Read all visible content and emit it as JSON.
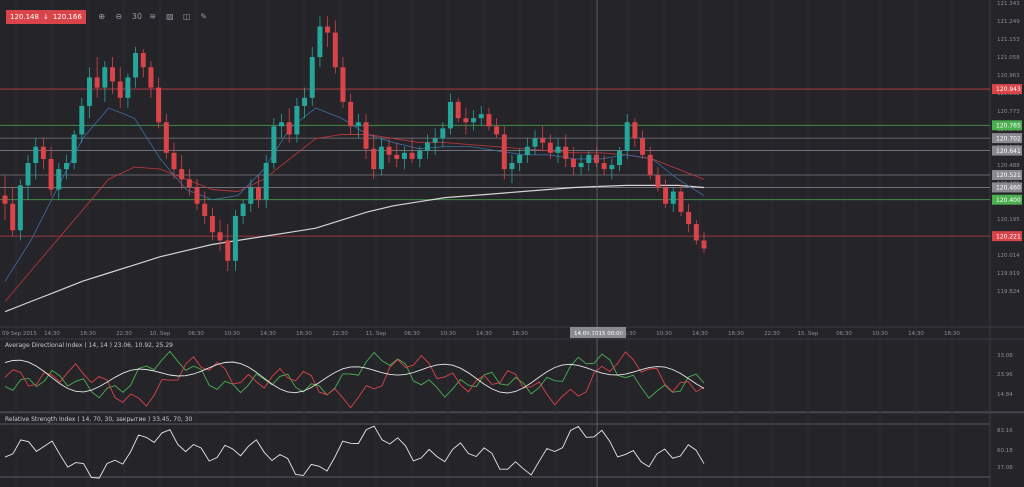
{
  "toolbar": {
    "bid": "120.148",
    "ask": "120.166",
    "tools": [
      {
        "icon": "zoom-in-icon",
        "glyph": "⊕"
      },
      {
        "icon": "zoom-out-icon",
        "glyph": "⊖"
      },
      {
        "icon": "timeframe-icon",
        "glyph": "30"
      },
      {
        "icon": "indicators-icon",
        "glyph": "≋"
      },
      {
        "icon": "screenshot-icon",
        "glyph": "▨"
      },
      {
        "icon": "objects-icon",
        "glyph": "◫"
      },
      {
        "icon": "draw-icon",
        "glyph": "✎"
      }
    ]
  },
  "colors": {
    "background": "#242429",
    "bull": "#26a69a",
    "bear": "#d9444a",
    "resistance": "#d9444a",
    "support": "#4caf50",
    "neutral_line": "#8a8a92",
    "ma_slow": "#e8e8e8",
    "ma_red": "#c0393e",
    "ma_blue": "#3f6fa6"
  },
  "price_axis": {
    "ticks": [
      "121.343",
      "121.249",
      "121.153",
      "121.058",
      "120.963",
      "120.868",
      "120.773",
      "120.678",
      "120.583",
      "120.488",
      "120.385",
      "120.290",
      "120.195",
      "120.109",
      "120.014",
      "119.919",
      "119.824"
    ]
  },
  "price_levels": [
    {
      "label": "120.943",
      "kind": "resistance"
    },
    {
      "label": "120.765",
      "kind": "support"
    },
    {
      "label": "120.702",
      "kind": "neutral"
    },
    {
      "label": "120.641",
      "kind": "neutral"
    },
    {
      "label": "120.521",
      "kind": "neutral"
    },
    {
      "label": "120.460",
      "kind": "neutral"
    },
    {
      "label": "120.400",
      "kind": "support"
    },
    {
      "label": "120.221",
      "kind": "resistance"
    }
  ],
  "time_axis": {
    "labels": [
      "09 Sep 2015",
      "14:30",
      "18:30",
      "22:30",
      "10. Sep",
      "06:30",
      "10:30",
      "14:30",
      "18:30",
      "22:30",
      "11. Sep",
      "06:30",
      "10:30",
      "14:30",
      "18:30",
      "14.09.2015 00:00",
      "Sep",
      "06:30",
      "10:30",
      "14:30",
      "18:30",
      "22:30",
      "15. Sep",
      "06:30",
      "10:30",
      "14:30",
      "18:30"
    ],
    "crosshair_label": "14.09.2015 00:00"
  },
  "adx_panel": {
    "title": "Average Directional Index ( 14, 14 ) 23.06, 10.92, 25.29",
    "ticks": [
      "33.08",
      "23.96",
      "14.84"
    ]
  },
  "rsi_panel": {
    "title": "Relative Strength Index ( 14, 70, 30, закрытие ) 33.45, 70, 30",
    "ticks": [
      "83.16",
      "60.18",
      "37.08"
    ]
  },
  "chart_data": {
    "type": "candlestick",
    "symbol_quote": {
      "bid": 120.148,
      "ask": 120.166
    },
    "ylim": [
      119.78,
      121.38
    ],
    "candles_ohlc": [
      [
        120.42,
        120.52,
        120.3,
        120.38
      ],
      [
        120.38,
        120.46,
        120.22,
        120.25
      ],
      [
        120.25,
        120.5,
        120.2,
        120.47
      ],
      [
        120.47,
        120.62,
        120.4,
        120.58
      ],
      [
        120.58,
        120.7,
        120.5,
        120.66
      ],
      [
        120.66,
        120.7,
        120.55,
        120.6
      ],
      [
        120.6,
        120.66,
        120.42,
        120.45
      ],
      [
        120.45,
        120.58,
        120.4,
        120.55
      ],
      [
        120.55,
        120.62,
        120.5,
        120.58
      ],
      [
        120.58,
        120.74,
        120.55,
        120.72
      ],
      [
        120.72,
        120.9,
        120.68,
        120.86
      ],
      [
        120.86,
        121.05,
        120.8,
        121.0
      ],
      [
        121.0,
        121.1,
        120.9,
        120.95
      ],
      [
        120.95,
        121.08,
        120.88,
        121.05
      ],
      [
        121.05,
        121.1,
        120.92,
        120.98
      ],
      [
        120.98,
        121.05,
        120.85,
        120.9
      ],
      [
        120.9,
        121.02,
        120.85,
        121.0
      ],
      [
        121.0,
        121.15,
        120.95,
        121.12
      ],
      [
        121.12,
        121.14,
        121.0,
        121.05
      ],
      [
        121.05,
        121.08,
        120.9,
        120.95
      ],
      [
        120.95,
        121.0,
        120.75,
        120.78
      ],
      [
        120.78,
        120.82,
        120.6,
        120.63
      ],
      [
        120.63,
        120.68,
        120.5,
        120.55
      ],
      [
        120.55,
        120.62,
        120.45,
        120.5
      ],
      [
        120.5,
        120.55,
        120.42,
        120.46
      ],
      [
        120.46,
        120.5,
        120.35,
        120.38
      ],
      [
        120.38,
        120.44,
        120.28,
        120.32
      ],
      [
        120.32,
        120.36,
        120.2,
        120.24
      ],
      [
        120.24,
        120.3,
        120.15,
        120.2
      ],
      [
        120.2,
        120.28,
        120.05,
        120.1
      ],
      [
        120.1,
        120.35,
        120.05,
        120.32
      ],
      [
        120.32,
        120.4,
        120.28,
        120.38
      ],
      [
        120.38,
        120.5,
        120.34,
        120.46
      ],
      [
        120.46,
        120.52,
        120.36,
        120.4
      ],
      [
        120.4,
        120.62,
        120.36,
        120.58
      ],
      [
        120.58,
        120.8,
        120.55,
        120.76
      ],
      [
        120.76,
        120.82,
        120.7,
        120.78
      ],
      [
        120.78,
        120.85,
        120.68,
        120.72
      ],
      [
        120.72,
        120.9,
        120.68,
        120.86
      ],
      [
        120.86,
        120.95,
        120.8,
        120.9
      ],
      [
        120.9,
        121.15,
        120.86,
        121.1
      ],
      [
        121.1,
        121.3,
        121.05,
        121.25
      ],
      [
        121.25,
        121.3,
        121.15,
        121.22
      ],
      [
        121.22,
        121.28,
        121.02,
        121.05
      ],
      [
        121.05,
        121.1,
        120.85,
        120.88
      ],
      [
        120.88,
        120.92,
        120.72,
        120.76
      ],
      [
        120.76,
        120.82,
        120.7,
        120.78
      ],
      [
        120.78,
        120.82,
        120.6,
        120.65
      ],
      [
        120.65,
        120.72,
        120.5,
        120.55
      ],
      [
        120.55,
        120.7,
        120.52,
        120.66
      ],
      [
        120.66,
        120.7,
        120.58,
        120.62
      ],
      [
        120.62,
        120.68,
        120.56,
        120.6
      ],
      [
        120.6,
        120.66,
        120.55,
        120.63
      ],
      [
        120.63,
        120.7,
        120.58,
        120.6
      ],
      [
        120.6,
        120.66,
        120.56,
        120.64
      ],
      [
        120.64,
        120.72,
        120.6,
        120.68
      ],
      [
        120.68,
        120.75,
        120.62,
        120.7
      ],
      [
        120.7,
        120.78,
        120.66,
        120.75
      ],
      [
        120.75,
        120.92,
        120.72,
        120.88
      ],
      [
        120.88,
        120.9,
        120.78,
        120.8
      ],
      [
        120.8,
        120.85,
        120.72,
        120.78
      ],
      [
        120.78,
        120.84,
        120.74,
        120.8
      ],
      [
        120.8,
        120.86,
        120.76,
        120.82
      ],
      [
        120.82,
        120.85,
        120.74,
        120.76
      ],
      [
        120.76,
        120.8,
        120.7,
        120.72
      ],
      [
        120.72,
        120.76,
        120.5,
        120.55
      ],
      [
        120.55,
        120.62,
        120.48,
        120.58
      ],
      [
        120.58,
        120.65,
        120.54,
        120.62
      ],
      [
        120.62,
        120.7,
        120.58,
        120.66
      ],
      [
        120.66,
        120.74,
        120.62,
        120.7
      ],
      [
        120.7,
        120.76,
        120.64,
        120.68
      ],
      [
        120.68,
        120.72,
        120.6,
        120.63
      ],
      [
        120.63,
        120.7,
        120.58,
        120.66
      ],
      [
        120.66,
        120.72,
        120.56,
        120.6
      ],
      [
        120.6,
        120.66,
        120.52,
        120.56
      ],
      [
        120.56,
        120.62,
        120.52,
        120.58
      ],
      [
        120.58,
        120.64,
        120.54,
        120.62
      ],
      [
        120.62,
        120.66,
        120.56,
        120.58
      ],
      [
        120.58,
        120.62,
        120.52,
        120.55
      ],
      [
        120.55,
        120.6,
        120.5,
        120.57
      ],
      [
        120.57,
        120.66,
        120.54,
        120.64
      ],
      [
        120.64,
        120.82,
        120.6,
        120.78
      ],
      [
        120.78,
        120.8,
        120.66,
        120.7
      ],
      [
        120.7,
        120.74,
        120.6,
        120.62
      ],
      [
        120.62,
        120.66,
        120.5,
        120.52
      ],
      [
        120.52,
        120.56,
        120.44,
        120.46
      ],
      [
        120.46,
        120.5,
        120.36,
        120.38
      ],
      [
        120.38,
        120.46,
        120.34,
        120.44
      ],
      [
        120.44,
        120.48,
        120.32,
        120.34
      ],
      [
        120.34,
        120.38,
        120.24,
        120.28
      ],
      [
        120.28,
        120.3,
        120.18,
        120.2
      ],
      [
        120.2,
        120.24,
        120.14,
        120.16
      ]
    ],
    "series": [
      {
        "name": "MA slow",
        "color": "#e8e8e8",
        "values": [
          119.85,
          119.9,
          119.95,
          120.0,
          120.04,
          120.08,
          120.12,
          120.15,
          120.18,
          120.2,
          120.22,
          120.24,
          120.26,
          120.3,
          120.34,
          120.37,
          120.39,
          120.41,
          120.42,
          120.43,
          120.44,
          120.45,
          120.46,
          120.465,
          120.47,
          120.47,
          120.47,
          120.46
        ]
      },
      {
        "name": "MA red",
        "color": "#c0393e",
        "values": [
          119.9,
          120.05,
          120.2,
          120.35,
          120.5,
          120.56,
          120.55,
          120.5,
          120.45,
          120.44,
          120.5,
          120.6,
          120.7,
          120.72,
          120.72,
          120.7,
          120.68,
          120.68,
          120.67,
          120.66,
          120.65,
          120.64,
          120.63,
          120.63,
          120.62,
          120.6,
          120.55,
          120.5
        ]
      },
      {
        "name": "MA blue",
        "color": "#3f6fa6",
        "values": [
          120.0,
          120.2,
          120.45,
          120.7,
          120.85,
          120.8,
          120.6,
          120.45,
          120.4,
          120.42,
          120.55,
          120.75,
          120.85,
          120.8,
          120.72,
          120.68,
          120.65,
          120.66,
          120.66,
          120.64,
          120.62,
          120.62,
          120.6,
          120.6,
          120.62,
          120.6,
          120.5,
          120.42
        ]
      }
    ],
    "indicators": {
      "adx": {
        "adx": 23.06,
        "minus_di": 10.92,
        "plus_di": 25.29
      },
      "rsi": {
        "value": 33.45,
        "overbought": 70,
        "oversold": 30
      }
    }
  }
}
